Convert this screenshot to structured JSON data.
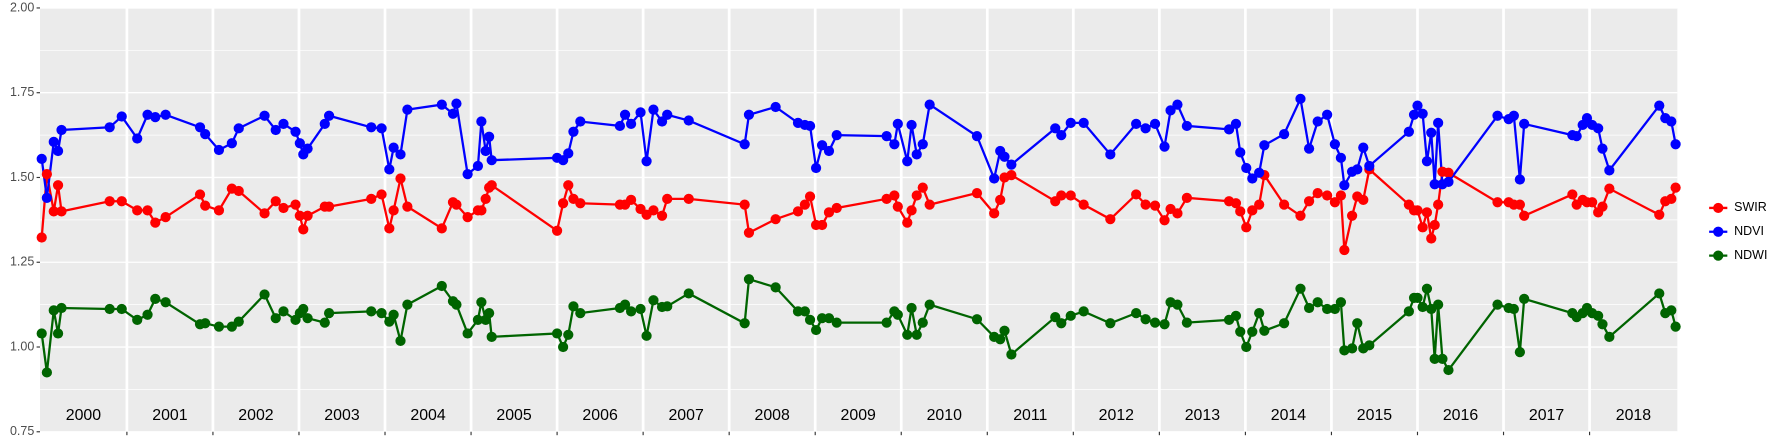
{
  "chart_data": {
    "type": "line",
    "x": [
      2000.01,
      2000.07,
      2000.15,
      2000.2,
      2000.24,
      2000.8,
      2000.94,
      2001.12,
      2001.24,
      2001.33,
      2001.45,
      2001.85,
      2001.91,
      2002.07,
      2002.22,
      2002.3,
      2002.6,
      2002.73,
      2002.82,
      2002.96,
      2003.01,
      2003.05,
      2003.1,
      2003.3,
      2003.35,
      2003.84,
      2003.96,
      2004.05,
      2004.1,
      2004.18,
      2004.26,
      2004.66,
      2004.79,
      2004.83,
      2004.96,
      2005.08,
      2005.12,
      2005.17,
      2005.21,
      2005.24,
      2006,
      2006.07,
      2006.13,
      2006.19,
      2006.27,
      2006.73,
      2006.79,
      2006.86,
      2006.97,
      2007.04,
      2007.12,
      2007.22,
      2007.28,
      2007.53,
      2008.18,
      2008.23,
      2008.54,
      2008.8,
      2008.88,
      2008.94,
      2009.01,
      2009.08,
      2009.16,
      2009.25,
      2009.83,
      2009.92,
      2009.96,
      2010.07,
      2010.12,
      2010.18,
      2010.25,
      2010.33,
      2010.88,
      2011.08,
      2011.15,
      2011.2,
      2011.28,
      2011.79,
      2011.86,
      2011.97,
      2012.12,
      2012.43,
      2012.73,
      2012.84,
      2012.95,
      2013.06,
      2013.13,
      2013.21,
      2013.32,
      2013.81,
      2013.89,
      2013.94,
      2014.01,
      2014.08,
      2014.16,
      2014.22,
      2014.45,
      2014.64,
      2014.74,
      2014.84,
      2014.95,
      2015.04,
      2015.11,
      2015.15,
      2015.24,
      2015.3,
      2015.37,
      2015.44,
      2015.9,
      2015.96,
      2016,
      2016.06,
      2016.11,
      2016.16,
      2016.2,
      2016.24,
      2016.29,
      2016.36,
      2016.93,
      2017.06,
      2017.12,
      2017.19,
      2017.24,
      2017.8,
      2017.85,
      2017.92,
      2017.97,
      2018.03,
      2018.1,
      2018.15,
      2018.23,
      2018.81,
      2018.88,
      2018.95,
      2019
    ],
    "series": [
      {
        "name": "SWIR",
        "color": "#ff0000",
        "values": [
          1.323,
          1.51,
          1.4,
          1.477,
          1.4,
          1.43,
          1.43,
          1.403,
          1.403,
          1.367,
          1.383,
          1.45,
          1.417,
          1.403,
          1.467,
          1.46,
          1.394,
          1.43,
          1.41,
          1.42,
          1.387,
          1.347,
          1.387,
          1.414,
          1.414,
          1.437,
          1.45,
          1.35,
          1.403,
          1.497,
          1.414,
          1.35,
          1.427,
          1.42,
          1.383,
          1.403,
          1.403,
          1.437,
          1.47,
          1.477,
          1.343,
          1.424,
          1.477,
          1.437,
          1.424,
          1.42,
          1.42,
          1.434,
          1.407,
          1.39,
          1.403,
          1.387,
          1.437,
          1.437,
          1.42,
          1.337,
          1.377,
          1.4,
          1.42,
          1.444,
          1.36,
          1.36,
          1.397,
          1.41,
          1.437,
          1.447,
          1.414,
          1.367,
          1.403,
          1.447,
          1.47,
          1.42,
          1.454,
          1.394,
          1.434,
          1.5,
          1.507,
          1.43,
          1.447,
          1.447,
          1.42,
          1.377,
          1.45,
          1.42,
          1.417,
          1.374,
          1.407,
          1.394,
          1.44,
          1.43,
          1.424,
          1.4,
          1.353,
          1.403,
          1.42,
          1.507,
          1.42,
          1.387,
          1.43,
          1.454,
          1.447,
          1.427,
          1.447,
          1.286,
          1.387,
          1.444,
          1.434,
          1.524,
          1.42,
          1.403,
          1.403,
          1.353,
          1.397,
          1.32,
          1.36,
          1.42,
          1.517,
          1.514,
          1.427,
          1.427,
          1.42,
          1.42,
          1.387,
          1.45,
          1.42,
          1.434,
          1.427,
          1.427,
          1.397,
          1.414,
          1.467,
          1.39,
          1.43,
          1.437,
          1.47
        ]
      },
      {
        "name": "NDVI",
        "color": "#0000ff",
        "values": [
          1.555,
          1.44,
          1.605,
          1.578,
          1.64,
          1.648,
          1.68,
          1.615,
          1.685,
          1.678,
          1.685,
          1.648,
          1.628,
          1.581,
          1.601,
          1.645,
          1.682,
          1.64,
          1.658,
          1.635,
          1.601,
          1.568,
          1.585,
          1.658,
          1.682,
          1.648,
          1.645,
          1.524,
          1.588,
          1.568,
          1.7,
          1.715,
          1.688,
          1.718,
          1.51,
          1.534,
          1.665,
          1.578,
          1.62,
          1.551,
          1.558,
          1.551,
          1.571,
          1.635,
          1.665,
          1.652,
          1.685,
          1.658,
          1.692,
          1.548,
          1.7,
          1.665,
          1.685,
          1.668,
          1.598,
          1.685,
          1.708,
          1.661,
          1.655,
          1.652,
          1.528,
          1.595,
          1.578,
          1.625,
          1.622,
          1.598,
          1.658,
          1.548,
          1.655,
          1.568,
          1.598,
          1.715,
          1.622,
          1.497,
          1.578,
          1.561,
          1.538,
          1.645,
          1.625,
          1.661,
          1.661,
          1.568,
          1.658,
          1.645,
          1.658,
          1.591,
          1.698,
          1.715,
          1.652,
          1.642,
          1.658,
          1.574,
          1.528,
          1.497,
          1.514,
          1.595,
          1.628,
          1.732,
          1.585,
          1.665,
          1.685,
          1.598,
          1.558,
          1.477,
          1.517,
          1.524,
          1.588,
          1.534,
          1.635,
          1.685,
          1.712,
          1.688,
          1.548,
          1.632,
          1.48,
          1.661,
          1.48,
          1.487,
          1.682,
          1.672,
          1.682,
          1.494,
          1.658,
          1.625,
          1.622,
          1.655,
          1.675,
          1.655,
          1.645,
          1.585,
          1.521,
          1.712,
          1.675,
          1.665,
          1.598
        ]
      },
      {
        "name": "NDWI",
        "color": "#006400",
        "values": [
          1.04,
          0.925,
          1.108,
          1.04,
          1.115,
          1.112,
          1.112,
          1.08,
          1.095,
          1.142,
          1.132,
          1.067,
          1.07,
          1.06,
          1.06,
          1.075,
          1.155,
          1.085,
          1.105,
          1.08,
          1.1,
          1.112,
          1.085,
          1.072,
          1.1,
          1.105,
          1.1,
          1.075,
          1.095,
          1.018,
          1.125,
          1.18,
          1.135,
          1.125,
          1.04,
          1.08,
          1.132,
          1.08,
          1.1,
          1.03,
          1.04,
          1.0,
          1.036,
          1.12,
          1.1,
          1.115,
          1.125,
          1.105,
          1.112,
          1.033,
          1.138,
          1.118,
          1.12,
          1.158,
          1.07,
          1.2,
          1.176,
          1.105,
          1.105,
          1.08,
          1.05,
          1.085,
          1.085,
          1.072,
          1.072,
          1.105,
          1.095,
          1.036,
          1.115,
          1.036,
          1.072,
          1.125,
          1.082,
          1.03,
          1.023,
          1.048,
          0.978,
          1.088,
          1.07,
          1.092,
          1.105,
          1.07,
          1.1,
          1.082,
          1.072,
          1.067,
          1.132,
          1.125,
          1.072,
          1.08,
          1.092,
          1.045,
          1.0,
          1.045,
          1.1,
          1.048,
          1.07,
          1.172,
          1.115,
          1.132,
          1.112,
          1.112,
          1.132,
          0.99,
          0.996,
          1.07,
          0.996,
          1.005,
          1.105,
          1.145,
          1.145,
          1.118,
          1.172,
          1.112,
          0.965,
          1.125,
          0.965,
          0.932,
          1.125,
          1.115,
          1.112,
          0.985,
          1.142,
          1.1,
          1.088,
          1.1,
          1.115,
          1.1,
          1.092,
          1.067,
          1.03,
          1.158,
          1.1,
          1.108,
          1.06
        ]
      }
    ],
    "xlim": [
      1999.99,
      2019.02
    ],
    "xticks": [
      2001,
      2002,
      2003,
      2004,
      2005,
      2006,
      2007,
      2008,
      2009,
      2010,
      2011,
      2012,
      2013,
      2014,
      2015,
      2016,
      2017,
      2018
    ],
    "year_labels": [
      "2000",
      "2001",
      "2002",
      "2003",
      "2004",
      "2005",
      "2006",
      "2007",
      "2008",
      "2009",
      "2010",
      "2011",
      "2012",
      "2013",
      "2014",
      "2015",
      "2016",
      "2017",
      "2018"
    ],
    "ylim": [
      0.75,
      2.0
    ],
    "yticks": [
      0.75,
      {
        "value": 1.0,
        "label": "1.00"
      },
      1.25,
      {
        "value": 1.5,
        "label": "1.50"
      },
      1.75,
      {
        "value": 2.0,
        "label": "2.00"
      }
    ],
    "grid": true,
    "legend": "right"
  }
}
